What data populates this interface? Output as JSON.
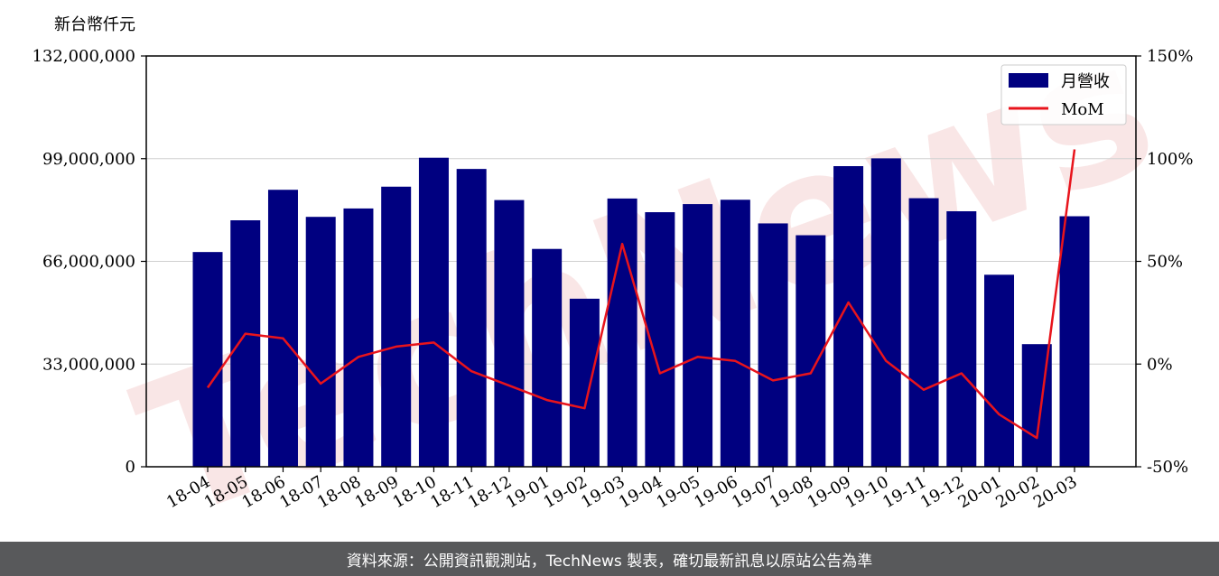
{
  "chart_data": {
    "type": "bar",
    "y_unit_label": "新台幣仟元",
    "categories": [
      "18-04",
      "18-05",
      "18-06",
      "18-07",
      "18-08",
      "18-09",
      "18-10",
      "18-11",
      "18-12",
      "19-01",
      "19-02",
      "19-03",
      "19-04",
      "19-05",
      "19-06",
      "19-07",
      "19-08",
      "19-09",
      "19-10",
      "19-11",
      "19-12",
      "20-01",
      "20-02",
      "20-03"
    ],
    "series": [
      {
        "name": "月營收",
        "axis": "left",
        "type": "bar",
        "color": "#000080",
        "values": [
          69000000,
          79200000,
          89000000,
          80300000,
          83000000,
          90000000,
          99300000,
          95700000,
          85700000,
          70000000,
          54000000,
          86200000,
          81800000,
          84400000,
          85800000,
          78200000,
          74400000,
          96600000,
          99100000,
          86300000,
          82100000,
          61700000,
          39400000,
          80500000
        ]
      },
      {
        "name": "MoM",
        "axis": "right",
        "type": "line",
        "color": "#e8141c",
        "values": [
          -11.5,
          14.8,
          12.5,
          -9.5,
          3.5,
          8.5,
          10.5,
          -3.5,
          -10.5,
          -17.5,
          -21.5,
          58.5,
          -4.5,
          3.5,
          1.5,
          -8,
          -4.5,
          30,
          1.5,
          -12.5,
          -4.5,
          -24.5,
          -36,
          104.5
        ]
      }
    ],
    "y_left": {
      "min": 0,
      "max": 132000000,
      "ticks": [
        0,
        33000000,
        66000000,
        99000000,
        132000000
      ],
      "tick_labels": [
        "0",
        "33,000,000",
        "66,000,000",
        "99,000,000",
        "132,000,000"
      ]
    },
    "y_right": {
      "min": -50,
      "max": 150,
      "ticks": [
        -50,
        0,
        50,
        100,
        150
      ],
      "tick_labels": [
        "-50%",
        "0%",
        "50%",
        "100%",
        "150%"
      ]
    },
    "grid": "horizontal",
    "legend": "top-right"
  },
  "watermark": {
    "text": "TechNews"
  },
  "footer": {
    "text": "資料來源：公開資訊觀測站，TechNews 製表，確切最新訊息以原站公告為準"
  }
}
